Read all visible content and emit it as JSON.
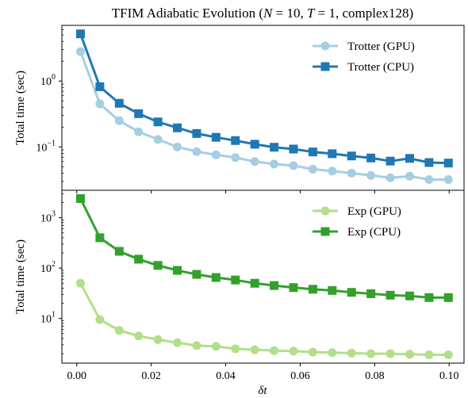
{
  "chart_data": {
    "type": "line",
    "title": "TFIM Adiabatic Evolution (N = 10, T = 1, complex128)",
    "xlabel": "δt",
    "xlim": [
      -0.004,
      0.104
    ],
    "xticks": [
      0.0,
      0.02,
      0.04,
      0.06,
      0.08,
      0.1
    ],
    "xtick_labels": [
      "0.00",
      "0.02",
      "0.04",
      "0.06",
      "0.08",
      "0.10"
    ],
    "x": [
      0.001,
      0.0062,
      0.0114,
      0.0166,
      0.0218,
      0.027,
      0.0322,
      0.0374,
      0.0426,
      0.0478,
      0.053,
      0.0582,
      0.0634,
      0.0686,
      0.0738,
      0.079,
      0.0842,
      0.0894,
      0.0946,
      0.0998
    ],
    "panels": [
      {
        "ylabel": "Total time (sec)",
        "yscale": "log",
        "ylim": [
          0.022,
          7
        ],
        "yticks": [
          {
            "value": 0.1,
            "base": "10",
            "exp": "−1"
          },
          {
            "value": 1,
            "base": "10",
            "exp": "0"
          }
        ],
        "legend_position": "top-right",
        "series": [
          {
            "name": "Trotter (GPU)",
            "color": "#a6cee3",
            "marker": "circle",
            "values": [
              2.8,
              0.45,
              0.25,
              0.17,
              0.13,
              0.1,
              0.085,
              0.076,
              0.069,
              0.06,
              0.055,
              0.052,
              0.046,
              0.043,
              0.04,
              0.037,
              0.034,
              0.036,
              0.032,
              0.032
            ]
          },
          {
            "name": "Trotter (CPU)",
            "color": "#1f78b4",
            "marker": "square",
            "values": [
              5.2,
              0.82,
              0.46,
              0.32,
              0.24,
              0.195,
              0.16,
              0.14,
              0.125,
              0.11,
              0.099,
              0.093,
              0.084,
              0.079,
              0.073,
              0.068,
              0.061,
              0.067,
              0.058,
              0.057
            ]
          }
        ]
      },
      {
        "ylabel": "Total time (sec)",
        "yscale": "log",
        "ylim": [
          1.3,
          3500
        ],
        "yticks": [
          {
            "value": 10,
            "base": "10",
            "exp": "1"
          },
          {
            "value": 100,
            "base": "10",
            "exp": "2"
          },
          {
            "value": 1000,
            "base": "10",
            "exp": "3"
          }
        ],
        "legend_position": "top-right",
        "series": [
          {
            "name": "Exp (GPU)",
            "color": "#b2df8a",
            "marker": "circle",
            "values": [
              50,
              9.5,
              5.8,
              4.5,
              3.8,
              3.3,
              2.9,
              2.8,
              2.5,
              2.4,
              2.3,
              2.25,
              2.15,
              2.1,
              2.05,
              2.0,
              2.0,
              1.95,
              1.9,
              1.9
            ]
          },
          {
            "name": "Exp (CPU)",
            "color": "#33a02c",
            "marker": "square",
            "values": [
              2400,
              400,
              215,
              150,
              113,
              90,
              75,
              65,
              58,
              50,
              45,
              41,
              38,
              36,
              33,
              31,
              29,
              28,
              26,
              26
            ]
          }
        ]
      }
    ]
  }
}
